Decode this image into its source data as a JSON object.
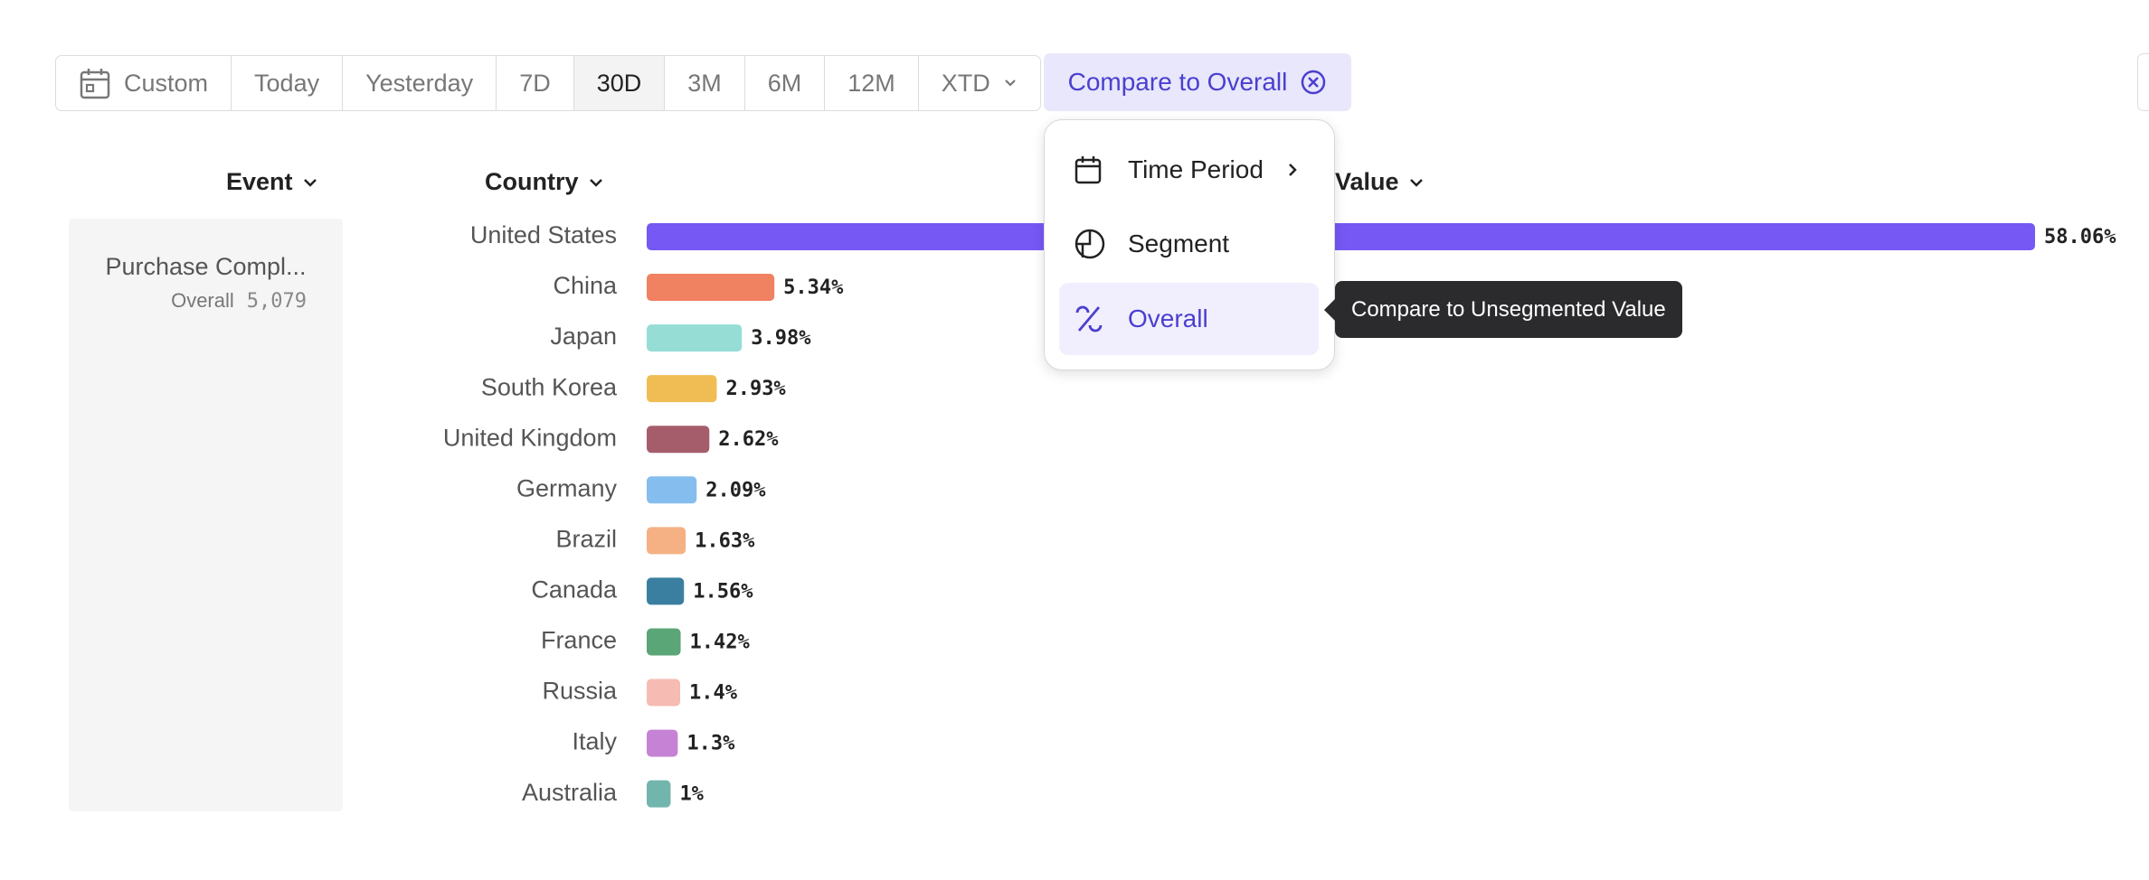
{
  "toolbar": {
    "date_ranges": [
      "Custom",
      "Today",
      "Yesterday",
      "7D",
      "30D",
      "3M",
      "6M",
      "12M",
      "XTD"
    ],
    "selected_index": 4,
    "compare_button": "Compare to Overall"
  },
  "table": {
    "headers": [
      "Event",
      "Country",
      "Value"
    ],
    "event": {
      "name": "Purchase Compl...",
      "label": "Overall",
      "value": "5,079"
    }
  },
  "chart_data": {
    "type": "bar",
    "orientation": "horizontal",
    "categories": [
      "United States",
      "China",
      "Japan",
      "South Korea",
      "United Kingdom",
      "Germany",
      "Brazil",
      "Canada",
      "France",
      "Russia",
      "Italy",
      "Australia"
    ],
    "values": [
      58.06,
      5.34,
      3.98,
      2.93,
      2.62,
      2.09,
      1.63,
      1.56,
      1.42,
      1.4,
      1.3,
      1
    ],
    "value_labels": [
      "58.06%",
      "5.34%",
      "3.98%",
      "2.93%",
      "2.62%",
      "2.09%",
      "1.63%",
      "1.56%",
      "1.42%",
      "1.4%",
      "1.3%",
      "1%"
    ],
    "colors": [
      "#7658f4",
      "#f08262",
      "#95ddd5",
      "#f0bd55",
      "#a55d6c",
      "#86bdef",
      "#f5b184",
      "#3b7fa0",
      "#5aa676",
      "#f6bbb3",
      "#c683d6",
      "#71b5ad"
    ]
  },
  "compare_menu": {
    "items": [
      "Time Period",
      "Segment",
      "Overall"
    ],
    "selected_index": 2
  },
  "tooltip": "Compare to Unsegmented Value"
}
